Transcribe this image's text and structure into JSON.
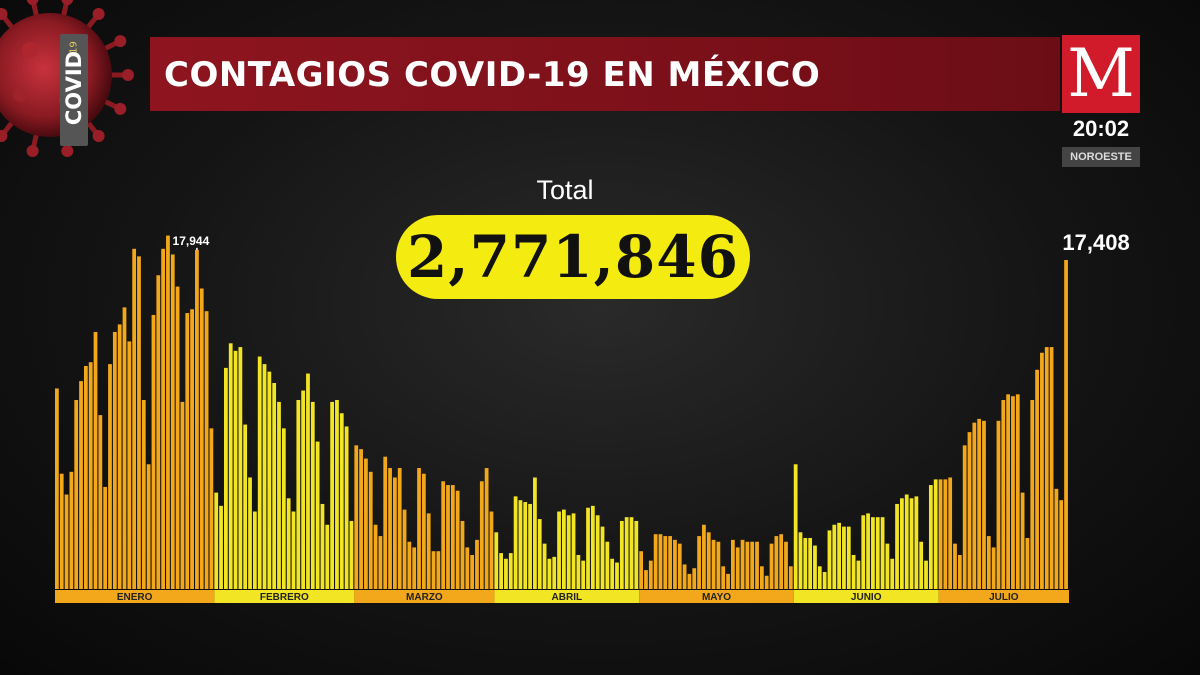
{
  "header": {
    "title": "CONTAGIOS COVID-19 EN MÉXICO",
    "badge_text": "COVID",
    "badge_number": "19",
    "logo_letter": "M",
    "time": "20:02",
    "region": "NOROESTE"
  },
  "total": {
    "label": "Total",
    "value": "2,771,846"
  },
  "colors": {
    "title_bar": "#7b1019",
    "logo": "#d11b2a",
    "bar_orange": "#f2a81a",
    "bar_yellow": "#f1e524",
    "pill": "#f4eb10"
  },
  "chart_data": {
    "type": "bar",
    "title": "",
    "xlabel": "",
    "ylabel": "",
    "ylim": [
      0,
      20000
    ],
    "grid": false,
    "legend": "none",
    "months": [
      {
        "name": "ENERO",
        "color": "orange",
        "values": [
          10610,
          6100,
          5000,
          6200,
          10000,
          11000,
          11800,
          12000,
          13600,
          9200,
          5400,
          11900,
          13600,
          14000,
          14900,
          13100,
          18000,
          17600,
          10000,
          6600,
          14500,
          16600,
          18000,
          18700,
          17700,
          16000,
          9900,
          14600,
          14800,
          17944,
          15900,
          14700,
          8500
        ]
      },
      {
        "name": "FEBRERO",
        "color": "yellow",
        "values": [
          5100,
          4400,
          11700,
          13000,
          12600,
          12800,
          8700,
          5900,
          4100,
          12300,
          11900,
          11500,
          10900,
          9900,
          8500,
          4800,
          4100,
          10000,
          10500,
          11400,
          9900,
          7800,
          4500,
          3400,
          9900,
          10000,
          9300,
          8600,
          3600
        ]
      },
      {
        "name": "MARZO",
        "color": "orange",
        "values": [
          7600,
          7400,
          6900,
          6200,
          3400,
          2800,
          7000,
          6400,
          5900,
          6400,
          4200,
          2500,
          2200,
          6400,
          6100,
          4000,
          2000,
          2000,
          5700,
          5500,
          5500,
          5200,
          3600,
          2200,
          1800,
          2600,
          5700,
          6400,
          4100
        ]
      },
      {
        "name": "ABRIL",
        "color": "yellow",
        "values": [
          3000,
          1900,
          1600,
          1900,
          4900,
          4700,
          4600,
          4500,
          5900,
          3700,
          2400,
          1600,
          1700,
          4100,
          4200,
          3900,
          4000,
          1800,
          1500,
          4300,
          4400,
          3900,
          3300,
          2500,
          1600,
          1400,
          3600,
          3800,
          3800,
          3600
        ]
      },
      {
        "name": "MAYO",
        "color": "orange",
        "values": [
          2000,
          1000,
          1500,
          2900,
          2900,
          2800,
          2800,
          2600,
          2400,
          1300,
          800,
          1100,
          2800,
          3400,
          3000,
          2600,
          2500,
          1200,
          800,
          2600,
          2200,
          2600,
          2500,
          2500,
          2500,
          1200,
          700,
          2400,
          2800,
          2900,
          2500,
          1200
        ]
      },
      {
        "name": "JUNIO",
        "color": "yellow",
        "values": [
          6600,
          3000,
          2700,
          2700,
          2300,
          1200,
          900,
          3100,
          3400,
          3500,
          3300,
          3300,
          1800,
          1500,
          3900,
          4000,
          3800,
          3800,
          3800,
          2400,
          1600,
          4500,
          4800,
          5000,
          4800,
          4900,
          2500,
          1500,
          5500,
          5800
        ]
      },
      {
        "name": "JULIO",
        "color": "orange",
        "values": [
          5800,
          5800,
          5900,
          2400,
          1800,
          7600,
          8300,
          8800,
          9000,
          8900,
          2800,
          2200,
          8900,
          10000,
          10300,
          10200,
          10300,
          5100,
          2700,
          10000,
          11600,
          12500,
          12800,
          12800,
          5300,
          4700,
          17408
        ]
      }
    ],
    "annotations": [
      {
        "label": "17,944",
        "month": "ENERO",
        "index": 29
      },
      {
        "label": "17,408",
        "month": "JULIO",
        "index": 26
      }
    ]
  }
}
